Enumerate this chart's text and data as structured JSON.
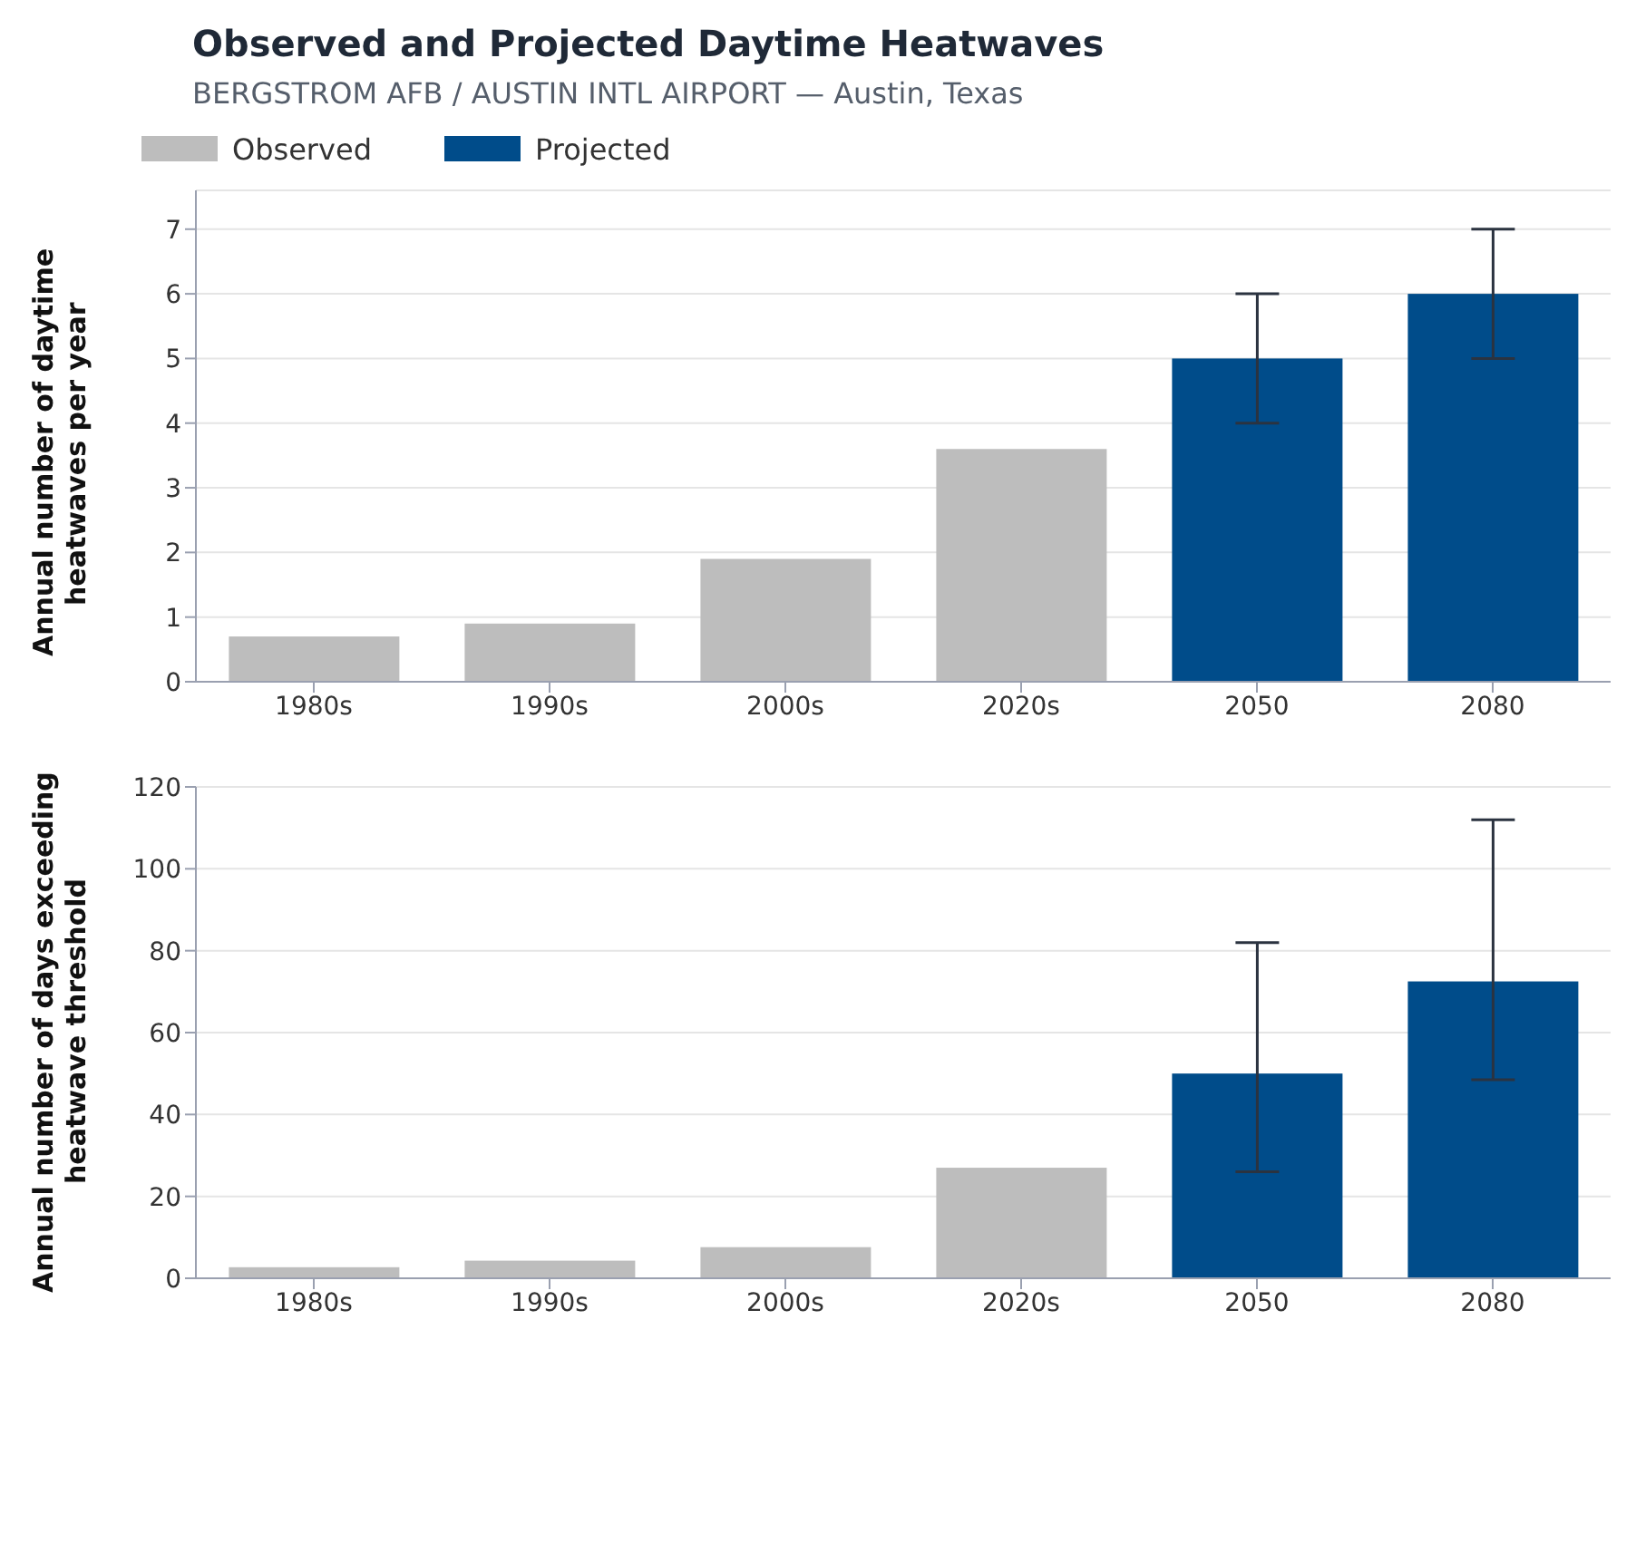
{
  "chart_data": [
    {
      "type": "bar",
      "title": "Observed and Projected Daytime Heatwaves",
      "subtitle": "BERGSTROM AFB / AUSTIN INTL AIRPORT — Austin, Texas",
      "ylabel": "Annual number of daytime heatwaves per year",
      "categories": [
        "1980s",
        "1990s",
        "2000s",
        "2020s",
        "2050",
        "2080"
      ],
      "legend": "top left",
      "grid": "y",
      "ylim": [
        0,
        7.6
      ],
      "yticks": [
        0,
        1,
        2,
        3,
        4,
        5,
        6,
        7
      ],
      "series": [
        {
          "name": "Observed",
          "color": "#bdbdbd",
          "values": [
            0.7,
            0.9,
            1.9,
            3.6,
            null,
            null
          ]
        },
        {
          "name": "Projected",
          "color": "#004c8a",
          "values": [
            null,
            null,
            null,
            null,
            5,
            6
          ],
          "errors": [
            null,
            null,
            null,
            null,
            [
              4,
              6
            ],
            [
              5,
              7
            ]
          ]
        }
      ]
    },
    {
      "type": "bar",
      "ylabel": "Annual number of days exceeding heatwave threshold",
      "categories": [
        "1980s",
        "1990s",
        "2000s",
        "2020s",
        "2050",
        "2080"
      ],
      "grid": "y",
      "ylim": [
        0,
        120
      ],
      "yticks": [
        0,
        20,
        40,
        60,
        80,
        100,
        120
      ],
      "series": [
        {
          "color": "#bdbdbd",
          "values": [
            2.7,
            4.3,
            7.6,
            27,
            null,
            null
          ]
        },
        {
          "color": "#004c8a",
          "values": [
            null,
            null,
            null,
            null,
            50,
            72.5
          ],
          "errors": [
            null,
            null,
            null,
            null,
            [
              26,
              82
            ],
            [
              48.5,
              112
            ]
          ]
        }
      ]
    }
  ]
}
